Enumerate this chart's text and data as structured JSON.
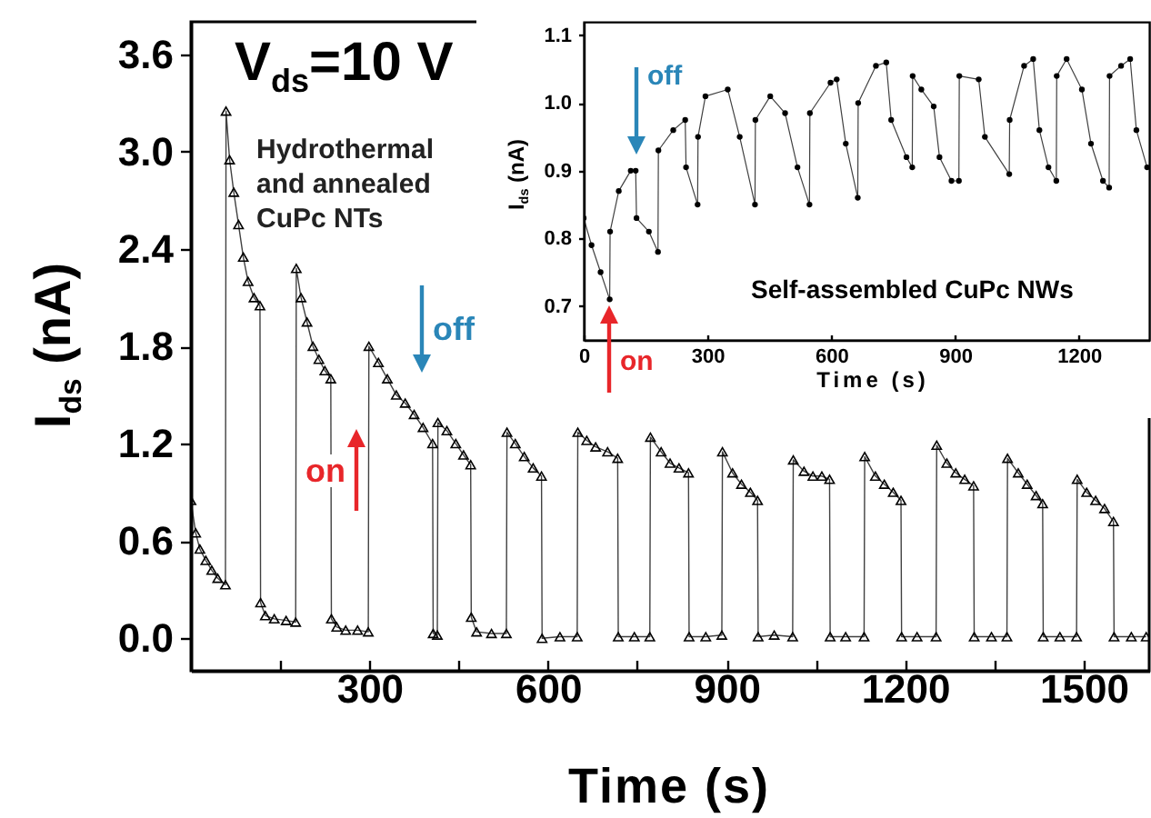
{
  "chart_data": [
    {
      "type": "line",
      "marker": "triangle",
      "line_style": "solid",
      "xlabel": "Time (s)",
      "ylabel": "I$_{ds}$ (nA)",
      "xlim": [
        0,
        1610
      ],
      "ylim": [
        -0.2,
        3.8
      ],
      "xticks": [
        {
          "value": 150,
          "label": null
        },
        300,
        {
          "value": 450,
          "label": null
        },
        600,
        {
          "value": 750,
          "label": null
        },
        900,
        {
          "value": 1050,
          "label": null
        },
        1200,
        {
          "value": 1350,
          "label": null
        },
        1500
      ],
      "yticks": [
        {
          "value": 0,
          "label": "0.0"
        },
        0.6,
        1.2,
        1.8,
        2.4,
        {
          "value": 3,
          "label": "3.0"
        },
        3.6
      ],
      "annotations": [
        "V$_{ds}$=10 V",
        "Hydrothermal and annealed CuPc NTs",
        "off",
        "on"
      ],
      "x": [
        0,
        8,
        15,
        25,
        35,
        45,
        58,
        59,
        65,
        72,
        80,
        88,
        96,
        106,
        116,
        117,
        125,
        140,
        160,
        176,
        177,
        185,
        195,
        205,
        215,
        225,
        235,
        236,
        245,
        260,
        280,
        298,
        299,
        315,
        330,
        345,
        360,
        375,
        390,
        406,
        407,
        414,
        415,
        430,
        445,
        458,
        470,
        471,
        480,
        505,
        530,
        531,
        545,
        560,
        575,
        589,
        590,
        620,
        649,
        650,
        665,
        680,
        700,
        717,
        718,
        745,
        771,
        772,
        790,
        805,
        820,
        836,
        837,
        865,
        892,
        893,
        910,
        925,
        940,
        952,
        953,
        980,
        1011,
        1012,
        1030,
        1045,
        1060,
        1073,
        1074,
        1100,
        1131,
        1132,
        1150,
        1165,
        1180,
        1193,
        1194,
        1220,
        1252,
        1253,
        1270,
        1285,
        1300,
        1315,
        1316,
        1345,
        1371,
        1372,
        1390,
        1405,
        1420,
        1431,
        1432,
        1460,
        1488,
        1489,
        1505,
        1520,
        1535,
        1550,
        1551,
        1580,
        1605
      ],
      "series": [
        {
          "color": "#000000",
          "values": [
            0.85,
            0.65,
            0.55,
            0.48,
            0.42,
            0.37,
            0.33,
            3.25,
            2.95,
            2.75,
            2.55,
            2.35,
            2.2,
            2.1,
            2.05,
            0.22,
            0.14,
            0.12,
            0.11,
            0.1,
            2.28,
            2.1,
            1.95,
            1.8,
            1.72,
            1.65,
            1.6,
            0.12,
            0.07,
            0.05,
            0.05,
            0.04,
            1.8,
            1.7,
            1.6,
            1.5,
            1.45,
            1.38,
            1.3,
            1.2,
            0.03,
            0.02,
            1.33,
            1.28,
            1.2,
            1.13,
            1.07,
            0.13,
            0.04,
            0.03,
            0.03,
            1.27,
            1.2,
            1.12,
            1.05,
            1.0,
            0.0,
            0.01,
            0.01,
            1.27,
            1.22,
            1.18,
            1.15,
            1.11,
            0.01,
            0.01,
            0.01,
            1.24,
            1.15,
            1.08,
            1.05,
            1.02,
            0.01,
            0.01,
            0.02,
            1.15,
            1.02,
            0.95,
            0.9,
            0.85,
            0.01,
            0.02,
            0.01,
            1.1,
            1.03,
            1.0,
            1.0,
            0.98,
            0.01,
            0.01,
            0.01,
            1.12,
            1.0,
            0.95,
            0.9,
            0.85,
            0.01,
            0.01,
            0.01,
            1.19,
            1.08,
            1.02,
            0.98,
            0.94,
            0.01,
            0.01,
            0.01,
            1.11,
            1.02,
            0.95,
            0.88,
            0.83,
            0.01,
            0.01,
            0.01,
            0.98,
            0.9,
            0.85,
            0.8,
            0.72,
            0.01,
            0.01,
            0.01
          ]
        }
      ]
    },
    {
      "type": "line",
      "marker": "circle",
      "line_style": "solid",
      "xlabel": "Time (s)",
      "ylabel": "I$_{ds}$ (nA)",
      "xlim": [
        0,
        1370
      ],
      "ylim": [
        0.65,
        1.12
      ],
      "xticks": [
        0,
        300,
        600,
        900,
        1200
      ],
      "yticks": [
        0.7,
        0.8,
        0.9,
        {
          "value": 1,
          "label": "1.0"
        },
        1.1
      ],
      "annotations": [
        "Self-assembled CuPc NWs",
        "off",
        "on"
      ],
      "x": [
        0,
        19,
        41,
        63,
        64,
        85,
        114,
        126,
        128,
        158,
        180,
        181,
        217,
        246,
        248,
        276,
        277,
        295,
        349,
        378,
        415,
        416,
        452,
        488,
        518,
        547,
        548,
        598,
        613,
        635,
        664,
        665,
        708,
        733,
        745,
        782,
        796,
        797,
        818,
        848,
        862,
        891,
        909,
        910,
        957,
        972,
        1031,
        1032,
        1067,
        1089,
        1104,
        1126,
        1145,
        1146,
        1170,
        1207,
        1229,
        1258,
        1273,
        1274,
        1302,
        1324,
        1339,
        1365
      ],
      "series": [
        {
          "color": "#000000",
          "values": [
            0.83,
            0.79,
            0.75,
            0.71,
            0.81,
            0.87,
            0.9,
            0.9,
            0.83,
            0.81,
            0.78,
            0.93,
            0.96,
            0.975,
            0.905,
            0.85,
            0.95,
            1.01,
            1.02,
            0.95,
            0.85,
            0.975,
            1.01,
            0.985,
            0.905,
            0.85,
            0.985,
            1.03,
            1.035,
            0.94,
            0.86,
            1.0,
            1.055,
            1.06,
            0.975,
            0.92,
            0.905,
            1.04,
            1.02,
            0.995,
            0.92,
            0.885,
            0.885,
            1.04,
            1.035,
            0.95,
            0.895,
            0.975,
            1.055,
            1.065,
            0.96,
            0.905,
            0.885,
            1.04,
            1.065,
            1.02,
            0.94,
            0.885,
            0.875,
            1.04,
            1.055,
            1.065,
            0.96,
            0.905
          ]
        }
      ]
    }
  ]
}
